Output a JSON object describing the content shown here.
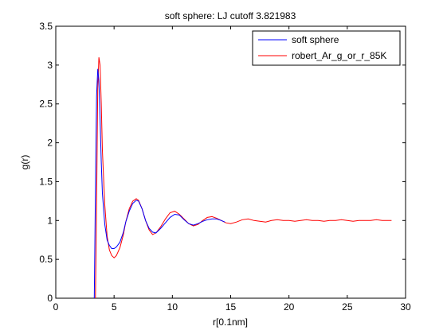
{
  "chart_data": {
    "type": "line",
    "title": "soft sphere: LJ cutoff 3.821983",
    "xlabel": "r[0.1nm]",
    "ylabel": "g(r)",
    "xlim": [
      0,
      30
    ],
    "ylim": [
      0,
      3.5
    ],
    "xticks": [
      0,
      5,
      10,
      15,
      20,
      25,
      30
    ],
    "yticks": [
      0,
      0.5,
      1,
      1.5,
      2,
      2.5,
      3,
      3.5
    ],
    "xtick_labels": [
      "0",
      "5",
      "10",
      "15",
      "20",
      "25",
      "30"
    ],
    "ytick_labels": [
      "0",
      "0.5",
      "1",
      "1.5",
      "2",
      "2.5",
      "3",
      "3.5"
    ],
    "grid": false,
    "legend_position": "top-right",
    "series": [
      {
        "name": "soft sphere",
        "color": "#0000ff",
        "x": [
          3.3,
          3.4,
          3.5,
          3.6,
          3.7,
          3.8,
          3.9,
          4.0,
          4.2,
          4.4,
          4.6,
          4.8,
          5.0,
          5.2,
          5.5,
          5.8,
          6.0,
          6.3,
          6.6,
          6.9,
          7.1,
          7.4,
          7.7,
          8.0,
          8.3,
          8.6,
          9.0,
          9.4,
          9.8,
          10.2,
          10.6,
          11.0,
          11.4,
          11.8,
          12.2,
          12.6,
          13.0,
          13.4,
          13.8,
          14.2,
          14.5
        ],
        "y": [
          0.0,
          1.4,
          2.6,
          2.95,
          2.8,
          2.3,
          1.75,
          1.35,
          0.95,
          0.75,
          0.68,
          0.64,
          0.64,
          0.66,
          0.72,
          0.85,
          0.98,
          1.12,
          1.22,
          1.26,
          1.25,
          1.15,
          1.0,
          0.9,
          0.85,
          0.84,
          0.9,
          0.97,
          1.04,
          1.08,
          1.07,
          1.01,
          0.96,
          0.94,
          0.96,
          0.99,
          1.01,
          1.02,
          1.02,
          1.0,
          0.98
        ]
      },
      {
        "name": "robert_Ar_g_or_r_85K",
        "color": "#ff0000",
        "x": [
          3.4,
          3.5,
          3.6,
          3.7,
          3.8,
          3.9,
          4.0,
          4.2,
          4.4,
          4.6,
          4.8,
          5.0,
          5.2,
          5.5,
          5.8,
          6.0,
          6.3,
          6.6,
          6.9,
          7.1,
          7.4,
          7.7,
          8.0,
          8.3,
          8.6,
          9.0,
          9.4,
          9.8,
          10.2,
          10.6,
          11.0,
          11.4,
          11.8,
          12.2,
          12.6,
          13.0,
          13.4,
          13.8,
          14.2,
          14.6,
          15.0,
          15.5,
          16.0,
          16.5,
          17.0,
          17.5,
          18.0,
          18.5,
          19.0,
          19.5,
          20.0,
          20.5,
          21.0,
          21.5,
          22.0,
          22.5,
          23.0,
          23.5,
          24.0,
          24.5,
          25.0,
          25.5,
          26.0,
          26.5,
          27.0,
          27.5,
          28.0,
          28.5,
          28.8
        ],
        "y": [
          0.0,
          1.2,
          2.7,
          3.1,
          3.0,
          2.5,
          1.9,
          1.2,
          0.8,
          0.62,
          0.55,
          0.52,
          0.55,
          0.65,
          0.82,
          0.98,
          1.15,
          1.25,
          1.28,
          1.26,
          1.15,
          1.0,
          0.88,
          0.82,
          0.84,
          0.92,
          1.02,
          1.1,
          1.12,
          1.08,
          1.02,
          0.96,
          0.93,
          0.95,
          1.0,
          1.04,
          1.05,
          1.03,
          1.0,
          0.97,
          0.96,
          0.98,
          1.01,
          1.02,
          1.0,
          0.99,
          0.98,
          1.0,
          1.01,
          1.0,
          1.0,
          0.99,
          1.0,
          1.01,
          1.0,
          1.0,
          0.99,
          1.0,
          1.0,
          1.01,
          1.0,
          0.99,
          1.0,
          1.0,
          1.0,
          1.01,
          1.0,
          1.0,
          1.0
        ]
      }
    ]
  }
}
